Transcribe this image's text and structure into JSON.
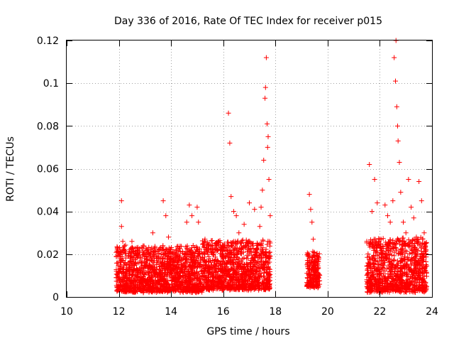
{
  "chart_data": {
    "type": "scatter",
    "title": "Day 336 of 2016, Rate Of TEC Index for receiver p015",
    "xlabel": "GPS time / hours",
    "ylabel": "ROTI / TECUs",
    "xlim": [
      10,
      24
    ],
    "ylim": [
      0,
      0.12
    ],
    "grid": true,
    "x_ticks": [
      10,
      12,
      14,
      16,
      18,
      20,
      22,
      24
    ],
    "y_ticks": [
      0,
      0.02,
      0.04,
      0.06,
      0.08,
      0.1,
      0.12
    ],
    "x_tick_labels": [
      "10",
      "12",
      "14",
      "16",
      "18",
      "20",
      "22",
      "24"
    ],
    "y_tick_labels": [
      "0",
      "0.02",
      "0.04",
      "0.06",
      "0.08",
      "0.1",
      "0.12"
    ],
    "marker": "+",
    "color": "#ff0000",
    "series": [
      {
        "name": "p015",
        "x": [
          11.9,
          12.0,
          12.1,
          12.1,
          12.15,
          12.2,
          12.25,
          12.4,
          12.5,
          12.7,
          12.9,
          13.1,
          13.3,
          13.5,
          13.6,
          13.7,
          13.8,
          13.85,
          13.9,
          14.1,
          14.3,
          14.5,
          14.6,
          14.7,
          14.8,
          14.9,
          15.0,
          15.05,
          15.1,
          15.3,
          15.5,
          15.7,
          15.9,
          16.05,
          16.2,
          16.25,
          16.3,
          16.4,
          16.5,
          16.6,
          16.8,
          17.0,
          17.2,
          17.4,
          17.45,
          17.5,
          17.55,
          17.6,
          17.62,
          17.65,
          17.68,
          17.7,
          17.72,
          17.75,
          17.8,
          19.3,
          19.35,
          19.4,
          19.45,
          19.5,
          19.6,
          21.5,
          21.6,
          21.7,
          21.8,
          21.9,
          22.0,
          22.1,
          22.2,
          22.3,
          22.4,
          22.5,
          22.55,
          22.6,
          22.62,
          22.65,
          22.68,
          22.7,
          22.75,
          22.8,
          22.9,
          23.0,
          23.1,
          23.2,
          23.3,
          23.4,
          23.5,
          23.6,
          23.7,
          23.75
        ],
        "y": [
          0.009,
          0.012,
          0.045,
          0.033,
          0.026,
          0.015,
          0.011,
          0.014,
          0.026,
          0.02,
          0.012,
          0.022,
          0.03,
          0.016,
          0.018,
          0.045,
          0.038,
          0.022,
          0.028,
          0.016,
          0.015,
          0.02,
          0.035,
          0.043,
          0.038,
          0.014,
          0.042,
          0.035,
          0.02,
          0.027,
          0.017,
          0.022,
          0.012,
          0.024,
          0.086,
          0.072,
          0.047,
          0.04,
          0.038,
          0.03,
          0.034,
          0.044,
          0.041,
          0.033,
          0.042,
          0.05,
          0.064,
          0.093,
          0.098,
          0.112,
          0.081,
          0.07,
          0.075,
          0.055,
          0.038,
          0.048,
          0.041,
          0.035,
          0.027,
          0.016,
          0.01,
          0.026,
          0.062,
          0.04,
          0.055,
          0.044,
          0.027,
          0.02,
          0.043,
          0.038,
          0.035,
          0.045,
          0.112,
          0.101,
          0.12,
          0.089,
          0.08,
          0.073,
          0.063,
          0.049,
          0.035,
          0.03,
          0.055,
          0.042,
          0.037,
          0.028,
          0.054,
          0.045,
          0.03,
          0.025
        ]
      }
    ],
    "dense_bands": [
      {
        "x_from": 11.9,
        "x_to": 15.2,
        "y_from": 0.002,
        "y_to": 0.03
      },
      {
        "x_from": 15.2,
        "x_to": 17.8,
        "y_from": 0.003,
        "y_to": 0.033
      },
      {
        "x_from": 19.2,
        "x_to": 19.7,
        "y_from": 0.004,
        "y_to": 0.026
      },
      {
        "x_from": 21.5,
        "x_to": 23.8,
        "y_from": 0.002,
        "y_to": 0.035
      }
    ]
  }
}
